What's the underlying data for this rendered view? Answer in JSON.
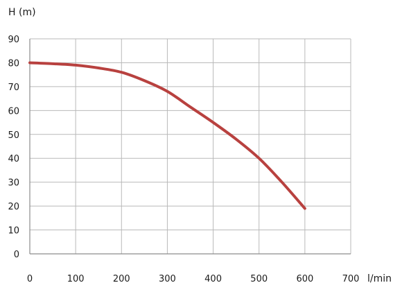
{
  "chart_data": {
    "type": "line",
    "ylabel": "H (m)",
    "xlabel": "l/min",
    "xlim": [
      0,
      700
    ],
    "ylim": [
      0,
      90
    ],
    "xticks": [
      "0",
      "100",
      "200",
      "300",
      "400",
      "500",
      "600",
      "700"
    ],
    "yticks": [
      "0",
      "10",
      "20",
      "30",
      "40",
      "50",
      "60",
      "70",
      "80",
      "90"
    ],
    "grid": true,
    "series": [
      {
        "color": "#b8413f",
        "x": [
          0,
          50,
          100,
          150,
          200,
          250,
          300,
          350,
          400,
          450,
          500,
          550,
          600
        ],
        "y": [
          80,
          79.6,
          79,
          77.8,
          76,
          72.5,
          68,
          61.5,
          55,
          48,
          40,
          30,
          19
        ]
      }
    ]
  }
}
